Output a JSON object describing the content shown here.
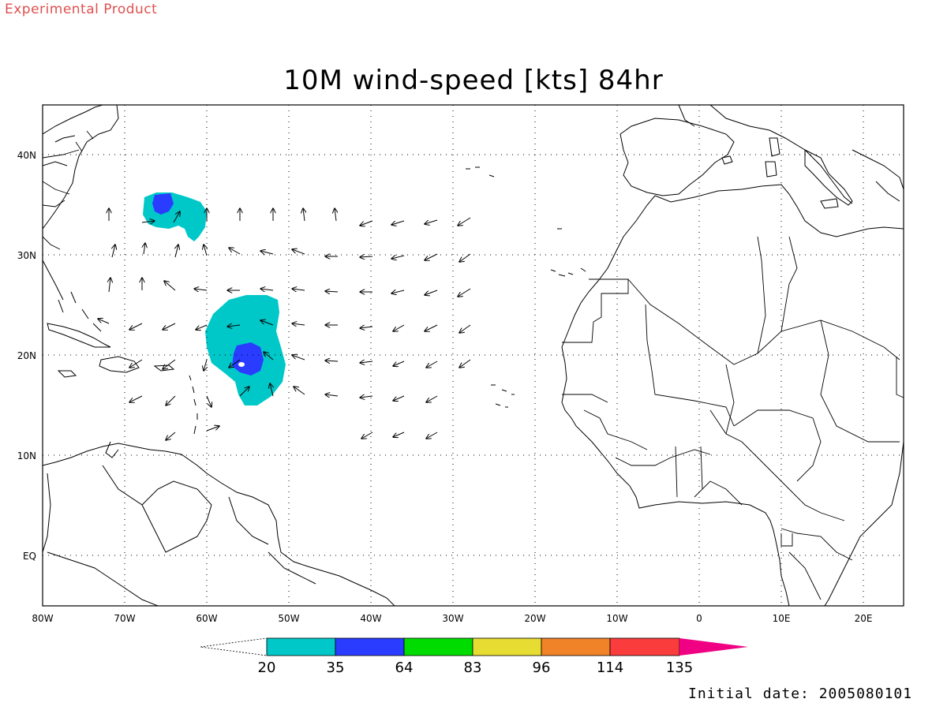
{
  "header": {
    "experimental_label": "Experimental Product",
    "title": "10M wind-speed [kts] 84hr"
  },
  "footer": {
    "initial_date": "Initial date: 2005080101"
  },
  "map": {
    "lon_range": [
      -80,
      25
    ],
    "lat_range": [
      -5,
      45
    ],
    "lon_ticks": [
      {
        "value": -80,
        "label": "80W"
      },
      {
        "value": -70,
        "label": "70W"
      },
      {
        "value": -60,
        "label": "60W"
      },
      {
        "value": -50,
        "label": "50W"
      },
      {
        "value": -40,
        "label": "40W"
      },
      {
        "value": -30,
        "label": "30W"
      },
      {
        "value": -20,
        "label": "20W"
      },
      {
        "value": -10,
        "label": "10W"
      },
      {
        "value": 0,
        "label": "0"
      },
      {
        "value": 10,
        "label": "10E"
      },
      {
        "value": 20,
        "label": "20E"
      }
    ],
    "lat_ticks": [
      {
        "value": 40,
        "label": "40N"
      },
      {
        "value": 30,
        "label": "30N"
      },
      {
        "value": 20,
        "label": "20N"
      },
      {
        "value": 10,
        "label": "10N"
      },
      {
        "value": 0,
        "label": "EQ"
      }
    ],
    "grid": "dotted"
  },
  "colorbar": {
    "labels": [
      "20",
      "35",
      "64",
      "83",
      "96",
      "114",
      "135"
    ],
    "colors": [
      "#00c8c8",
      "#2a3cff",
      "#00dc00",
      "#e6dc32",
      "#f08228",
      "#fa3c3c",
      "#f00082"
    ]
  }
}
